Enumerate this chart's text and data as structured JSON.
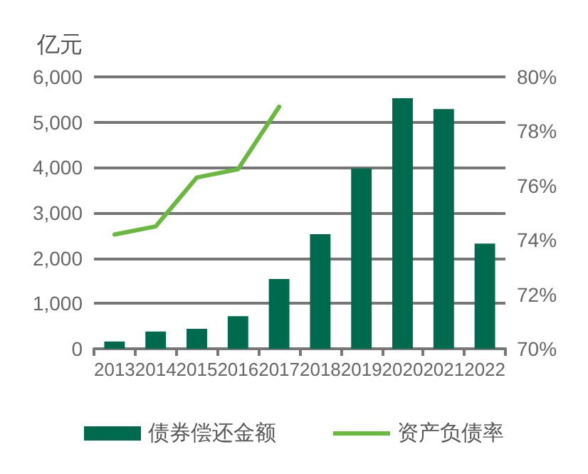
{
  "chart_data": {
    "type": "bar",
    "ylabel": "亿元",
    "categories": [
      "2013",
      "2014",
      "2015",
      "2016",
      "2017",
      "2018",
      "2019",
      "2020",
      "2021",
      "2022"
    ],
    "series": [
      {
        "name": "债券偿还金额",
        "color": "#006a4e",
        "values": [
          160,
          380,
          440,
          720,
          1540,
          2530,
          3980,
          5530,
          5290,
          2320
        ]
      },
      {
        "name": "资产负债率",
        "type": "line",
        "axis": "y2",
        "color": "#6ab83f",
        "values": [
          74.2,
          74.5,
          76.3,
          76.6,
          78.9,
          null,
          null,
          null,
          null,
          null
        ]
      }
    ],
    "ylim": [
      0,
      6000
    ],
    "yticks": [
      {
        "value": 0,
        "label": "0"
      },
      {
        "value": 1000,
        "label": "1,000"
      },
      {
        "value": 2000,
        "label": "2,000"
      },
      {
        "value": 3000,
        "label": "3,000"
      },
      {
        "value": 4000,
        "label": "4,000"
      },
      {
        "value": 5000,
        "label": "5,000"
      },
      {
        "value": 6000,
        "label": "6,000"
      }
    ],
    "y2lim": [
      70,
      80
    ],
    "y2ticks": [
      {
        "value": 70,
        "label": "70%"
      },
      {
        "value": 72,
        "label": "72%"
      },
      {
        "value": 74,
        "label": "74%"
      },
      {
        "value": 76,
        "label": "76%"
      },
      {
        "value": 78,
        "label": "78%"
      },
      {
        "value": 80,
        "label": "80%"
      }
    ],
    "grid": "y",
    "legend": "bottom",
    "marker": "none"
  }
}
